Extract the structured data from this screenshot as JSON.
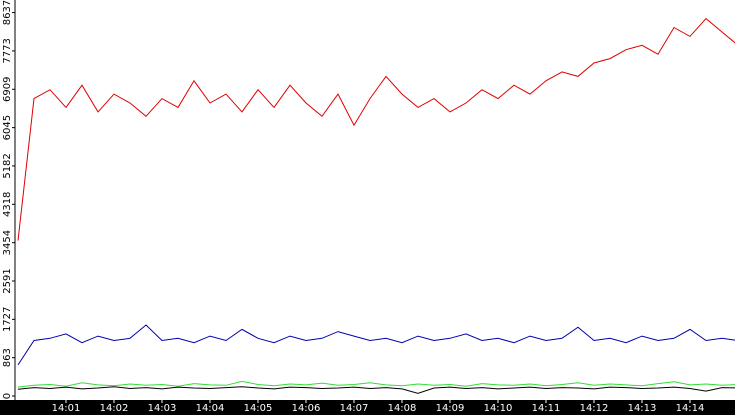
{
  "chart_data": {
    "type": "line",
    "x": [
      0,
      0.3333,
      0.6667,
      1,
      1.3333,
      1.6667,
      2,
      2.3333,
      2.6667,
      3,
      3.3333,
      3.6667,
      4,
      4.3333,
      4.6667,
      5,
      5.3333,
      5.6667,
      6,
      6.3333,
      6.6667,
      7,
      7.3333,
      7.6667,
      8,
      8.3333,
      8.6667,
      9,
      9.3333,
      9.6667,
      10,
      10.3333,
      10.6667,
      11,
      11.3333,
      11.6667,
      12,
      12.3333,
      12.6667,
      13,
      13.3333,
      13.6667,
      14,
      14.3333,
      14.6667,
      15
    ],
    "series": [
      {
        "color": "#e00000",
        "values": [
          3500,
          6700,
          6900,
          6500,
          7000,
          6400,
          6800,
          6600,
          6300,
          6700,
          6500,
          7100,
          6600,
          6800,
          6400,
          6900,
          6500,
          7000,
          6600,
          6300,
          6800,
          6100,
          6700,
          7200,
          6800,
          6500,
          6700,
          6400,
          6600,
          6900,
          6700,
          7000,
          6800,
          7100,
          7300,
          7200,
          7500,
          7600,
          7800,
          7900,
          7700,
          8300,
          8100,
          8500,
          8200,
          7900
        ]
      },
      {
        "color": "#0000b0",
        "values": [
          700,
          1250,
          1300,
          1400,
          1200,
          1350,
          1250,
          1300,
          1600,
          1250,
          1300,
          1200,
          1350,
          1250,
          1500,
          1300,
          1200,
          1350,
          1250,
          1300,
          1450,
          1350,
          1250,
          1300,
          1200,
          1350,
          1250,
          1300,
          1400,
          1250,
          1300,
          1200,
          1350,
          1250,
          1300,
          1550,
          1250,
          1300,
          1200,
          1350,
          1250,
          1300,
          1500,
          1250,
          1300,
          1250
        ]
      },
      {
        "color": "#33dd33",
        "values": [
          200,
          240,
          260,
          220,
          300,
          250,
          230,
          270,
          240,
          260,
          220,
          280,
          250,
          240,
          330,
          260,
          230,
          270,
          250,
          290,
          240,
          260,
          300,
          250,
          230,
          270,
          240,
          260,
          220,
          280,
          250,
          240,
          270,
          230,
          260,
          300,
          240,
          270,
          250,
          230,
          280,
          320,
          250,
          270,
          240,
          260
        ]
      },
      {
        "color": "#000000",
        "values": [
          150,
          190,
          170,
          200,
          160,
          180,
          210,
          170,
          190,
          160,
          200,
          180,
          170,
          190,
          210,
          180,
          160,
          200,
          190,
          170,
          180,
          200,
          170,
          190,
          160,
          60,
          180,
          200,
          170,
          190,
          160,
          180,
          200,
          170,
          190,
          180,
          160,
          200,
          190,
          170,
          180,
          200,
          170,
          110,
          190,
          180
        ]
      }
    ],
    "xlim": [
      -0.0625,
      14.9375
    ],
    "xticks": [
      {
        "value": 1,
        "label": "14:01"
      },
      {
        "value": 2,
        "label": "14:02"
      },
      {
        "value": 3,
        "label": "14:03"
      },
      {
        "value": 4,
        "label": "14:04"
      },
      {
        "value": 5,
        "label": "14:05"
      },
      {
        "value": 6,
        "label": "14:06"
      },
      {
        "value": 7,
        "label": "14:07"
      },
      {
        "value": 8,
        "label": "14:08"
      },
      {
        "value": 9,
        "label": "14:09"
      },
      {
        "value": 10,
        "label": "14:10"
      },
      {
        "value": 11,
        "label": "14:11"
      },
      {
        "value": 12,
        "label": "14:12"
      },
      {
        "value": 13,
        "label": "14:13"
      },
      {
        "value": 14,
        "label": "14:14"
      }
    ],
    "ylim": [
      -90,
      8920
    ],
    "yticks": [
      0,
      863,
      1727,
      2591,
      3454,
      4318,
      5182,
      6045,
      6909,
      7773,
      8637
    ]
  }
}
